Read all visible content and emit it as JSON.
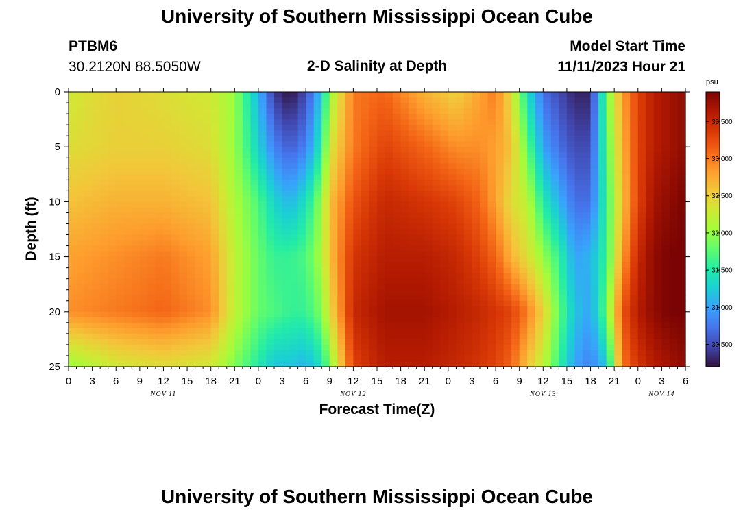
{
  "page": {
    "top_title": "University of Southern Mississippi Ocean Cube",
    "bottom_title": "University of Southern Mississippi Ocean Cube"
  },
  "station": {
    "id": "PTBM6",
    "coords": "30.2120N  88.5050W"
  },
  "model": {
    "start_label": "Model Start Time",
    "start_value": "11/11/2023 Hour 21"
  },
  "colorbar": {
    "unit": "psu",
    "min": 30.2,
    "max": 33.9,
    "ticks": [
      "33.500",
      "33.000",
      "32.500",
      "32.000",
      "31.500",
      "31.000",
      "30.500"
    ],
    "tick_values": [
      33.5,
      33.0,
      32.5,
      32.0,
      31.5,
      31.0,
      30.5
    ],
    "stops": [
      "#30123b",
      "#4145ab",
      "#4675ed",
      "#39a2fc",
      "#1bcfd4",
      "#24eca6",
      "#61fc6c",
      "#a4fc3b",
      "#d1e834",
      "#f3c63a",
      "#fe9b2d",
      "#f36315",
      "#d93806",
      "#b11901",
      "#7a0403"
    ]
  },
  "chart_data": {
    "type": "heatmap",
    "title": "2-D Salinity at Depth",
    "xlabel": "Forecast Time(Z)",
    "ylabel": "Depth (ft)",
    "x_unit": "hours since 11/11/2023 00Z",
    "xlim": [
      0,
      78
    ],
    "ylim": [
      25,
      0
    ],
    "x_tick_values": [
      0,
      3,
      6,
      9,
      12,
      15,
      18,
      21,
      24,
      27,
      30,
      33,
      36,
      39,
      42,
      45,
      48,
      51,
      54,
      57,
      60,
      63,
      66,
      69,
      72,
      75,
      78
    ],
    "x_tick_labels": [
      "0",
      "3",
      "6",
      "9",
      "12",
      "15",
      "18",
      "21",
      "0",
      "3",
      "6",
      "9",
      "12",
      "15",
      "18",
      "21",
      "0",
      "3",
      "6",
      "9",
      "12",
      "15",
      "18",
      "21",
      "0",
      "3",
      "6"
    ],
    "day_labels": [
      {
        "hour": 12,
        "label": "NOV 11"
      },
      {
        "hour": 36,
        "label": "NOV 12"
      },
      {
        "hour": 60,
        "label": "NOV 13"
      },
      {
        "hour": 75,
        "label": "NOV 14"
      }
    ],
    "y_tick_values": [
      0,
      5,
      10,
      15,
      20,
      25
    ],
    "y_tick_labels": [
      "0",
      "5",
      "10",
      "15",
      "20",
      "25"
    ],
    "profile_times": [
      0,
      6,
      12,
      18,
      21,
      24,
      26,
      28,
      30,
      32,
      33,
      36,
      40,
      45,
      49,
      52,
      54,
      56,
      58,
      60,
      62,
      64,
      66,
      68,
      70,
      72,
      74,
      76,
      78
    ],
    "profile_depths": [
      0,
      5,
      10,
      15,
      20,
      25
    ],
    "salinity_profiles": [
      [
        32.3,
        32.4,
        32.6,
        32.8,
        32.9,
        32.0
      ],
      [
        32.5,
        32.5,
        32.7,
        32.9,
        33.0,
        32.3
      ],
      [
        32.4,
        32.5,
        32.7,
        33.0,
        33.1,
        32.4
      ],
      [
        32.3,
        32.4,
        32.6,
        32.8,
        32.9,
        32.3
      ],
      [
        32.0,
        32.0,
        32.1,
        32.2,
        32.2,
        31.9
      ],
      [
        31.1,
        31.3,
        31.7,
        31.8,
        31.8,
        31.5
      ],
      [
        30.4,
        30.8,
        31.3,
        31.6,
        31.7,
        31.2
      ],
      [
        30.2,
        30.6,
        31.1,
        31.6,
        31.6,
        31.2
      ],
      [
        30.5,
        30.8,
        31.4,
        31.7,
        31.6,
        31.1
      ],
      [
        31.2,
        31.5,
        32.0,
        32.1,
        31.9,
        31.4
      ],
      [
        32.0,
        32.3,
        32.6,
        32.6,
        32.4,
        31.9
      ],
      [
        33.0,
        33.0,
        33.2,
        33.4,
        33.5,
        33.3
      ],
      [
        33.1,
        33.3,
        33.5,
        33.6,
        33.7,
        33.6
      ],
      [
        32.7,
        33.1,
        33.4,
        33.6,
        33.7,
        33.6
      ],
      [
        32.5,
        32.9,
        33.3,
        33.5,
        33.6,
        33.5
      ],
      [
        32.8,
        32.9,
        33.1,
        33.3,
        33.5,
        33.4
      ],
      [
        33.0,
        32.8,
        32.8,
        33.1,
        33.4,
        33.3
      ],
      [
        32.4,
        32.6,
        32.4,
        32.7,
        33.3,
        33.1
      ],
      [
        31.4,
        31.8,
        32.2,
        32.4,
        33.0,
        32.6
      ],
      [
        30.7,
        31.0,
        31.5,
        32.0,
        32.5,
        32.2
      ],
      [
        30.5,
        30.7,
        31.1,
        31.6,
        31.8,
        31.6
      ],
      [
        30.3,
        30.5,
        30.7,
        31.0,
        31.2,
        31.0
      ],
      [
        30.3,
        30.5,
        30.7,
        31.1,
        31.0,
        30.8
      ],
      [
        31.8,
        31.7,
        31.6,
        31.6,
        31.8,
        31.2
      ],
      [
        32.8,
        32.7,
        32.6,
        32.8,
        33.2,
        33.0
      ],
      [
        33.3,
        33.3,
        33.3,
        33.5,
        33.6,
        33.4
      ],
      [
        33.6,
        33.6,
        33.7,
        33.8,
        33.8,
        33.6
      ],
      [
        33.7,
        33.7,
        33.8,
        33.9,
        33.9,
        33.7
      ],
      [
        33.8,
        33.8,
        33.9,
        33.9,
        33.9,
        33.8
      ]
    ]
  }
}
